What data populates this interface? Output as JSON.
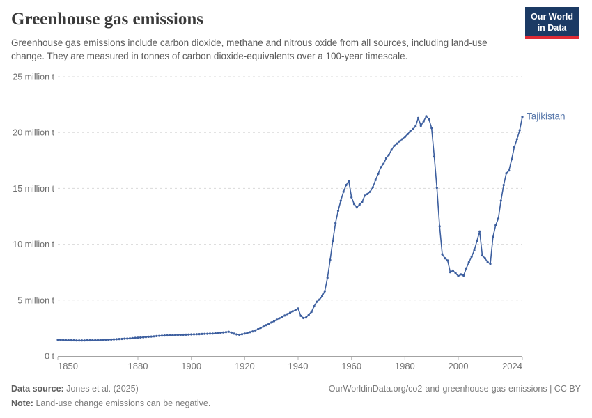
{
  "header": {
    "title": "Greenhouse gas emissions",
    "subtitle": "Greenhouse gas emissions include carbon dioxide, methane and nitrous oxide from all sources, including land-use change. They are measured in tonnes of carbon dioxide-equivalents over a 100-year timescale."
  },
  "logo": {
    "line1": "Our World",
    "line2": "in Data",
    "bg_color": "#1b3a64",
    "accent_color": "#e02b35"
  },
  "chart_data": {
    "type": "line",
    "title": "Greenhouse gas emissions",
    "xlabel": "",
    "ylabel": "tonnes of carbon dioxide-equivalents",
    "xlim": [
      1850,
      2024
    ],
    "ylim": [
      0,
      25
    ],
    "grid": "horizontal-dashed",
    "legend_position": "end-of-line-label",
    "x_ticks": [
      1850,
      1880,
      1900,
      1920,
      1940,
      1960,
      1980,
      2000,
      2024
    ],
    "y_ticks": [
      {
        "value": 0,
        "label": "0 t"
      },
      {
        "value": 5,
        "label": "5 million t"
      },
      {
        "value": 10,
        "label": "10 million t"
      },
      {
        "value": 15,
        "label": "15 million t"
      },
      {
        "value": 20,
        "label": "20 million t"
      },
      {
        "value": 25,
        "label": "25 million t"
      }
    ],
    "unit": "million tonnes CO2-equivalents",
    "line_color": "#3d5f9f",
    "label_color": "#5878ab",
    "series": [
      {
        "name": "Tajikistan",
        "start_year": 1850,
        "end_year": 2024,
        "values": [
          1.45,
          1.44,
          1.43,
          1.42,
          1.41,
          1.4,
          1.4,
          1.39,
          1.39,
          1.39,
          1.39,
          1.4,
          1.4,
          1.41,
          1.41,
          1.42,
          1.43,
          1.44,
          1.45,
          1.46,
          1.47,
          1.49,
          1.5,
          1.52,
          1.53,
          1.55,
          1.56,
          1.58,
          1.6,
          1.62,
          1.64,
          1.66,
          1.68,
          1.7,
          1.72,
          1.74,
          1.76,
          1.78,
          1.8,
          1.82,
          1.83,
          1.84,
          1.85,
          1.86,
          1.87,
          1.88,
          1.89,
          1.9,
          1.91,
          1.92,
          1.93,
          1.94,
          1.95,
          1.96,
          1.97,
          1.98,
          1.99,
          2.0,
          2.01,
          2.03,
          2.05,
          2.08,
          2.11,
          2.14,
          2.17,
          2.1,
          2.0,
          1.93,
          1.9,
          1.95,
          2.01,
          2.07,
          2.13,
          2.2,
          2.29,
          2.4,
          2.52,
          2.64,
          2.76,
          2.88,
          3.0,
          3.12,
          3.25,
          3.38,
          3.5,
          3.62,
          3.75,
          3.87,
          4.0,
          4.1,
          4.25,
          3.6,
          3.4,
          3.45,
          3.7,
          3.95,
          4.45,
          4.85,
          5.05,
          5.35,
          5.8,
          7.0,
          8.6,
          10.3,
          11.9,
          13.0,
          13.9,
          14.7,
          15.3,
          15.65,
          14.2,
          13.6,
          13.3,
          13.55,
          13.8,
          14.35,
          14.5,
          14.7,
          15.1,
          15.75,
          16.3,
          16.9,
          17.2,
          17.7,
          18.0,
          18.45,
          18.8,
          19.0,
          19.2,
          19.4,
          19.6,
          19.85,
          20.1,
          20.3,
          20.55,
          21.3,
          20.6,
          21.0,
          21.45,
          21.2,
          20.4,
          17.85,
          15.05,
          11.6,
          9.1,
          8.75,
          8.55,
          7.5,
          7.65,
          7.4,
          7.15,
          7.3,
          7.2,
          7.85,
          8.4,
          8.9,
          9.45,
          10.3,
          11.15,
          9.0,
          8.75,
          8.4,
          8.25,
          10.65,
          11.7,
          12.3,
          13.9,
          15.3,
          16.35,
          16.6,
          17.6,
          18.7,
          19.4,
          20.2,
          21.4
        ]
      }
    ]
  },
  "footer": {
    "data_source_label": "Data source:",
    "data_source_value": "Jones et al. (2025)",
    "note_label": "Note:",
    "note_value": "Land-use change emissions can be negative.",
    "url_text": "OurWorldinData.org/co2-and-greenhouse-gas-emissions | CC BY"
  }
}
